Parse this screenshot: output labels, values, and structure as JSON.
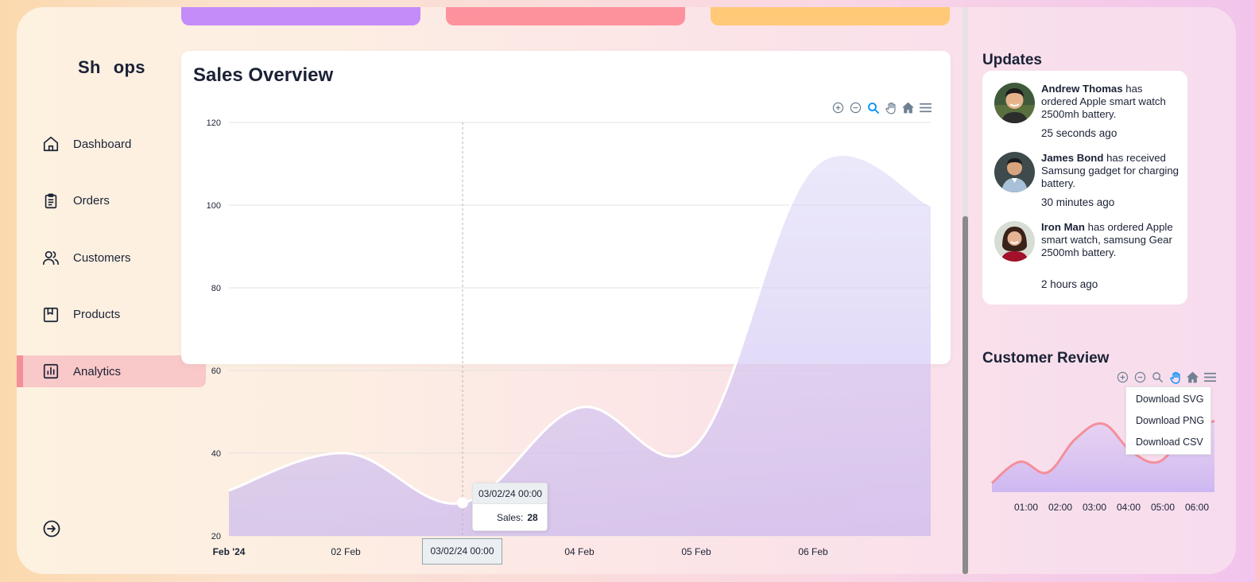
{
  "app": {
    "logo": "Sh ops",
    "logo_left": "Sh",
    "logo_right": "ops"
  },
  "sidebar": {
    "items": [
      {
        "label": "Dashboard",
        "icon": "home-icon",
        "active": false
      },
      {
        "label": "Orders",
        "icon": "clipboard-icon",
        "active": false
      },
      {
        "label": "Customers",
        "icon": "users-icon",
        "active": false
      },
      {
        "label": "Products",
        "icon": "bookmark-box-icon",
        "active": false
      },
      {
        "label": "Analytics",
        "icon": "bar-chart-icon",
        "active": true
      }
    ],
    "logout_icon": "logout-icon"
  },
  "stat_cards": {
    "colors": [
      "#c48cf8",
      "#fd929d",
      "#ffc978"
    ]
  },
  "sales": {
    "title": "Sales Overview",
    "tooltip": {
      "header": "03/02/24 00:00",
      "label": "Sales:",
      "value": "28"
    },
    "x_tooltip": "03/02/24 00:00"
  },
  "updates": {
    "title": "Updates",
    "items": [
      {
        "name": "Andrew Thomas",
        "text": " has ordered Apple smart watch 2500mh battery.",
        "time": "25 seconds ago"
      },
      {
        "name": "James Bond",
        "text": " has received Samsung gadget for charging battery.",
        "time": "30 minutes ago"
      },
      {
        "name": "Iron Man",
        "text": " has ordered Apple smart watch, samsung Gear 2500mh battery.",
        "time": "2 hours ago"
      }
    ]
  },
  "review": {
    "title": "Customer Review",
    "menu": [
      "Download SVG",
      "Download PNG",
      "Download CSV"
    ]
  },
  "chart_data": [
    {
      "type": "area",
      "title": "Sales Overview",
      "xlabel": "",
      "ylabel": "",
      "x_ticks": [
        "Feb '24",
        "02 Feb",
        "03 Feb",
        "04 Feb",
        "05 Feb",
        "06 Feb"
      ],
      "ylim": [
        20,
        120
      ],
      "y_ticks": [
        20,
        40,
        60,
        80,
        100,
        120
      ],
      "grid": true,
      "series": [
        {
          "name": "Sales",
          "x": [
            "2024-02-01",
            "2024-02-02",
            "2024-02-03",
            "2024-02-04",
            "2024-02-05",
            "2024-02-06",
            "2024-02-07"
          ],
          "values": [
            31,
            40,
            28,
            51,
            42,
            109,
            100
          ]
        }
      ]
    },
    {
      "type": "area",
      "title": "Customer Review",
      "x_ticks": [
        "01:00",
        "02:00",
        "03:00",
        "04:00",
        "05:00",
        "06:00"
      ],
      "series": [
        {
          "x": [
            "00:00",
            "01:00",
            "02:00",
            "03:00",
            "03:30",
            "04:00",
            "04:30",
            "05:00",
            "06:00"
          ],
          "values": [
            31,
            45,
            38,
            60,
            70,
            52,
            45,
            64,
            72
          ]
        }
      ]
    }
  ],
  "colors": {
    "accent": "#f48f9a",
    "area_fill": "#c9b8f0",
    "line_sales": "#ffffff",
    "line_review": "#f48f9a"
  }
}
